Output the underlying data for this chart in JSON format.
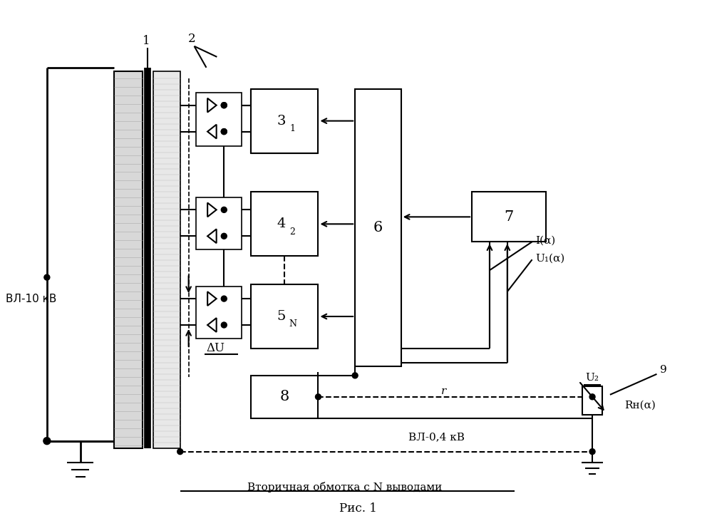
{
  "bg_color": "#ffffff",
  "line_color": "#000000",
  "caption": "Рис. 1",
  "label_vl10": "ВЛ-10 кВ",
  "label_vl04": "ВЛ-0,4 кВ",
  "label_secondary": "Вторичная обмотка с N выводами",
  "label_delta_u": "ΔU",
  "label_r": "r",
  "label_u2": "U₂",
  "label_rh": "Rн(α)",
  "label_ialpha": "I(α)",
  "label_u1alpha": "U₁(α)",
  "box3_label": "3",
  "box3_sub": "1",
  "box4_label": "4",
  "box4_sub": "2",
  "box5_label": "5",
  "box5_sub": "N",
  "box6_label": "6",
  "box7_label": "7",
  "box8_label": "8",
  "num1": "1",
  "num2": "2",
  "num9": "9"
}
